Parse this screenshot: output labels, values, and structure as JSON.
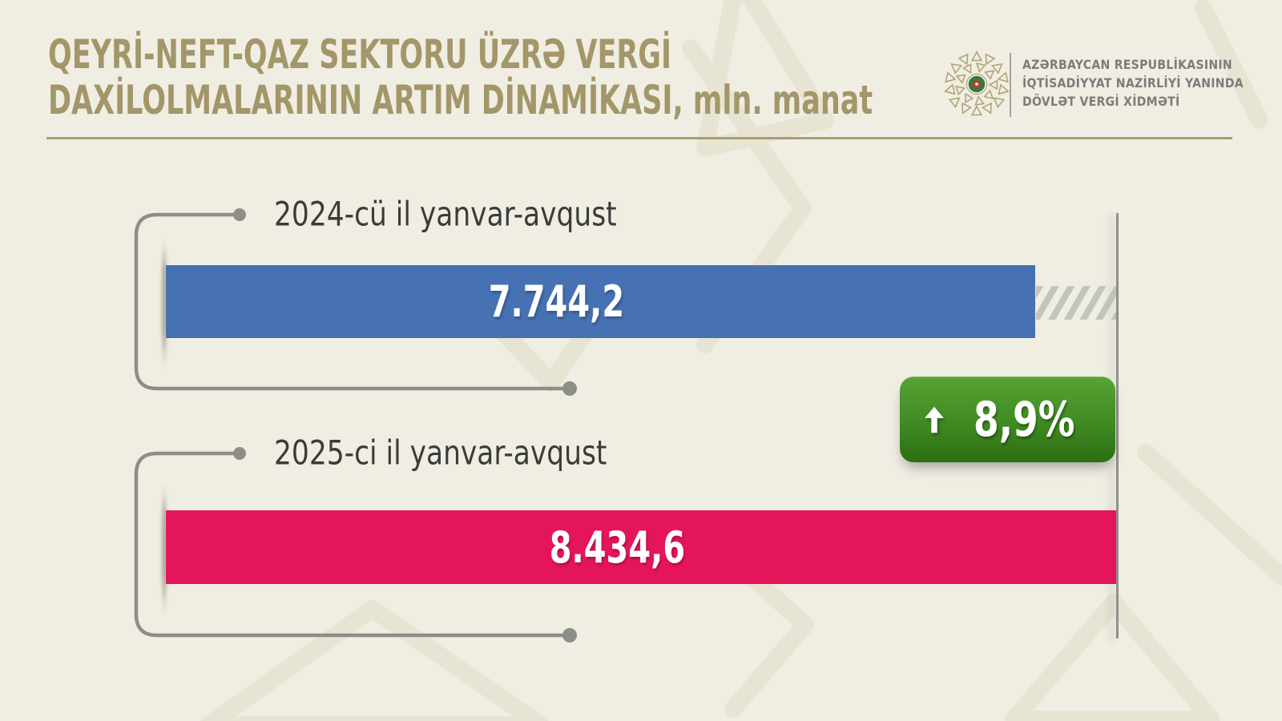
{
  "header": {
    "title_line1": "QEYRİ-NEFT-QAZ SEKTORU ÜZRƏ VERGİ",
    "title_line2": "DAXİLOLMALARININ ARTIM DİNAMİKASI, mln. manat",
    "logo": {
      "org_line1": "AZƏRBAYCAN RESPUBLİKASININ",
      "org_line2": "İQTİSADİYYAT NAZİRLİYİ YANINDA",
      "org_line3": "DÖVLƏT VERGİ XİDMƏTİ"
    }
  },
  "chart_data": {
    "type": "bar",
    "orientation": "horizontal",
    "title": "QEYRİ-NEFT-QAZ SEKTORU ÜZRƏ VERGİ DAXİLOLMALARININ ARTIM DİNAMİKASI, mln. manat",
    "unit": "mln. manat",
    "categories": [
      "2024-cü il yanvar-avqust",
      "2025-ci il yanvar-avqust"
    ],
    "values": [
      7744.2,
      8434.6
    ],
    "value_labels": [
      "7.744,2",
      "8.434,6"
    ],
    "bar_colors": [
      "#4671b3",
      "#e5155c"
    ],
    "xlim": [
      0,
      8434.6
    ],
    "grid": false,
    "legend": false,
    "annotations": {
      "growth_badge": {
        "label": "8,9%",
        "direction": "up",
        "icon": "up-arrow-icon"
      },
      "reference_line_at_value": 8434.6,
      "hatched_gap_between": [
        7744.2,
        8434.6
      ]
    }
  },
  "colors": {
    "background": "#f0eee3",
    "watermark": "#e8e4d3",
    "title_gold": "#a39669",
    "bar_2024_blue": "#4671b3",
    "bar_2025_pink": "#e5155c",
    "badge_green_top": "#58a335",
    "badge_green_bottom": "#2d6e14",
    "connector_gray": "#8d8d8a",
    "category_text": "#3b3b3b",
    "logo_text": "#7c7c7c",
    "value_text": "#ffffff"
  }
}
